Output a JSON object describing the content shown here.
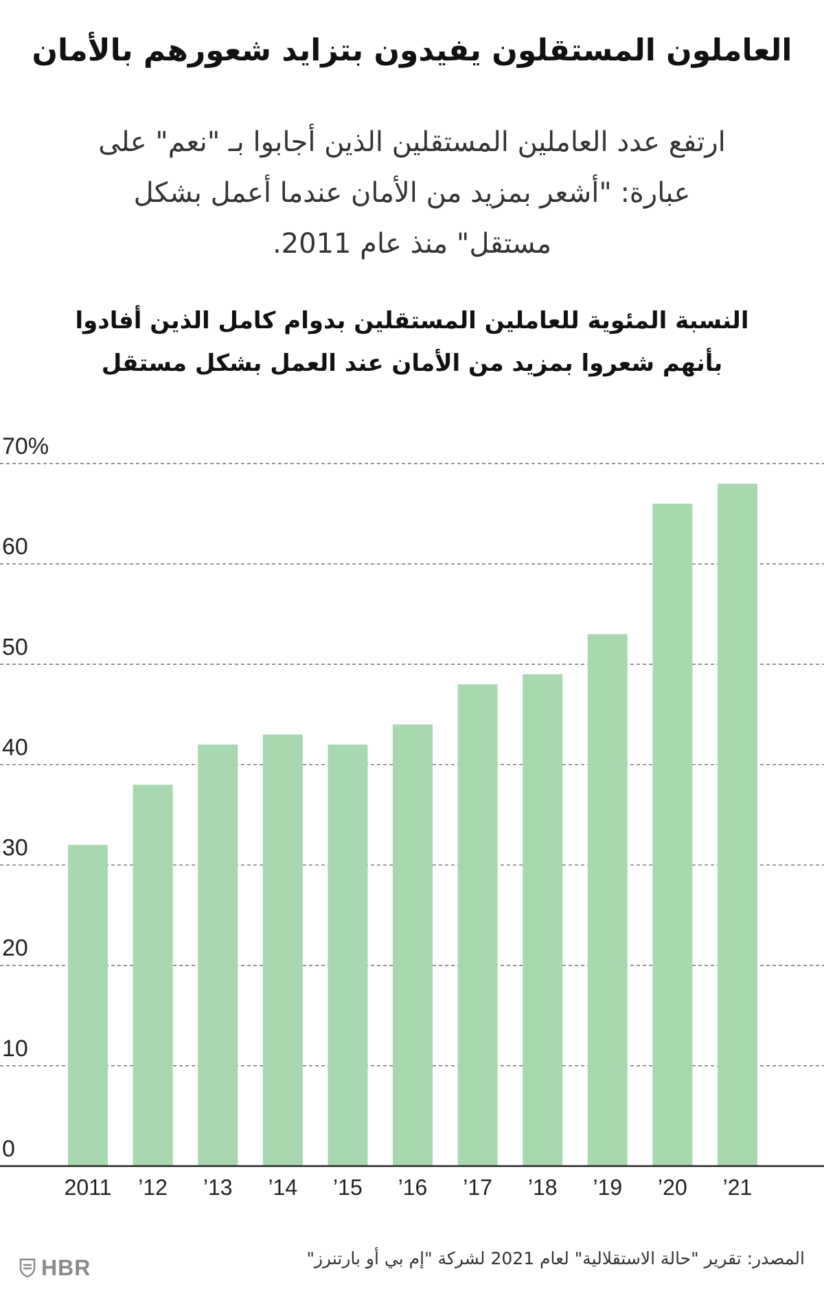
{
  "header": {
    "headline": "العاملون المستقلون يفيدون بتزايد شعورهم بالأمان",
    "subtitle": "ارتفع عدد العاملين المستقلين الذين أجابوا بـ \"نعم\" على عبارة: \"أشعر بمزيد من الأمان عندما أعمل بشكل مستقل\" منذ عام 2011."
  },
  "chart_data": {
    "type": "bar",
    "title": "النسبة المئوية للعاملين المستقلين بدوام كامل الذين أفادوا بأنهم شعروا بمزيد من الأمان عند العمل بشكل مستقل",
    "categories": [
      "2011",
      "’12",
      "’13",
      "’14",
      "’15",
      "’16",
      "’17",
      "’18",
      "’19",
      "’20",
      "’21"
    ],
    "values": [
      32,
      38,
      42,
      43,
      42,
      44,
      48,
      49,
      53,
      66,
      68
    ],
    "yticks": [
      0,
      10,
      20,
      30,
      40,
      50,
      60,
      70
    ],
    "ytick_labels": [
      "0",
      "10",
      "20",
      "30",
      "40",
      "50",
      "60",
      "70%"
    ],
    "ylim": [
      0,
      70
    ],
    "xlabel": "",
    "ylabel": "",
    "grid": "horizontal dashed",
    "colors": {
      "bar": "#a7d8b0",
      "grid": "#555555",
      "axis": "#222222",
      "tick_text": "#222222"
    }
  },
  "footer": {
    "source": "المصدر: تقرير \"حالة الاستقلالية\" لعام 2021 لشركة \"إم بي أو بارتنرز\"",
    "logo_text": "HBR",
    "logo_icon": "shield-icon"
  }
}
